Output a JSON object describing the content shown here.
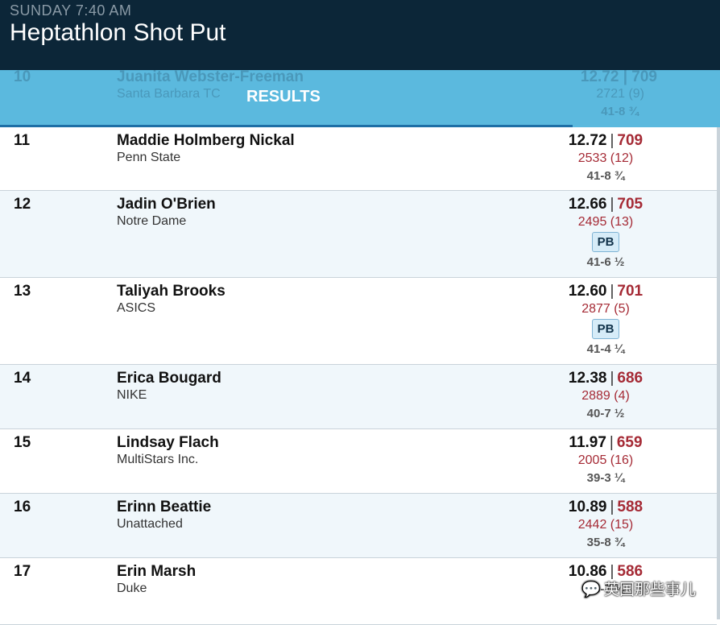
{
  "header": {
    "day_time": "SUNDAY 7:40 AM",
    "title": "Heptathlon Shot Put"
  },
  "tabs": {
    "active_label": "RESULTS"
  },
  "partial_row": {
    "rank": "10",
    "name": "Juanita Webster-Freeman",
    "team": "Santa Barbara TC",
    "mark": "12.72",
    "points": "709",
    "total": "2721 (9)",
    "imperial": "41-8 ¾"
  },
  "rows": [
    {
      "rank": "11",
      "name": "Maddie Holmberg Nickal",
      "team": "Penn State",
      "mark": "12.72",
      "points": "709",
      "total": "2533 (12)",
      "pb": "",
      "imperial": "41-8 ¾"
    },
    {
      "rank": "12",
      "name": "Jadin O'Brien",
      "team": "Notre Dame",
      "mark": "12.66",
      "points": "705",
      "total": "2495 (13)",
      "pb": "PB",
      "imperial": "41-6 ½"
    },
    {
      "rank": "13",
      "name": "Taliyah Brooks",
      "team": "ASICS",
      "mark": "12.60",
      "points": "701",
      "total": "2877 (5)",
      "pb": "PB",
      "imperial": "41-4 ¼"
    },
    {
      "rank": "14",
      "name": "Erica Bougard",
      "team": "NIKE",
      "mark": "12.38",
      "points": "686",
      "total": "2889 (4)",
      "pb": "",
      "imperial": "40-7 ½"
    },
    {
      "rank": "15",
      "name": "Lindsay Flach",
      "team": "MultiStars Inc.",
      "mark": "11.97",
      "points": "659",
      "total": "2005 (16)",
      "pb": "",
      "imperial": "39-3 ¼"
    },
    {
      "rank": "16",
      "name": "Erinn Beattie",
      "team": "Unattached",
      "mark": "10.89",
      "points": "588",
      "total": "2442 (15)",
      "pb": "",
      "imperial": "35-8 ¾"
    },
    {
      "rank": "17",
      "name": "Erin Marsh",
      "team": "Duke",
      "mark": "10.86",
      "points": "586",
      "total": "",
      "pb": "",
      "imperial": "35-7 ¾"
    }
  ],
  "watermark": {
    "text": "英国那些事儿"
  },
  "colors": {
    "header_bg": "#0c2638",
    "tab_bg": "#5bb9de",
    "points": "#a52a35"
  }
}
